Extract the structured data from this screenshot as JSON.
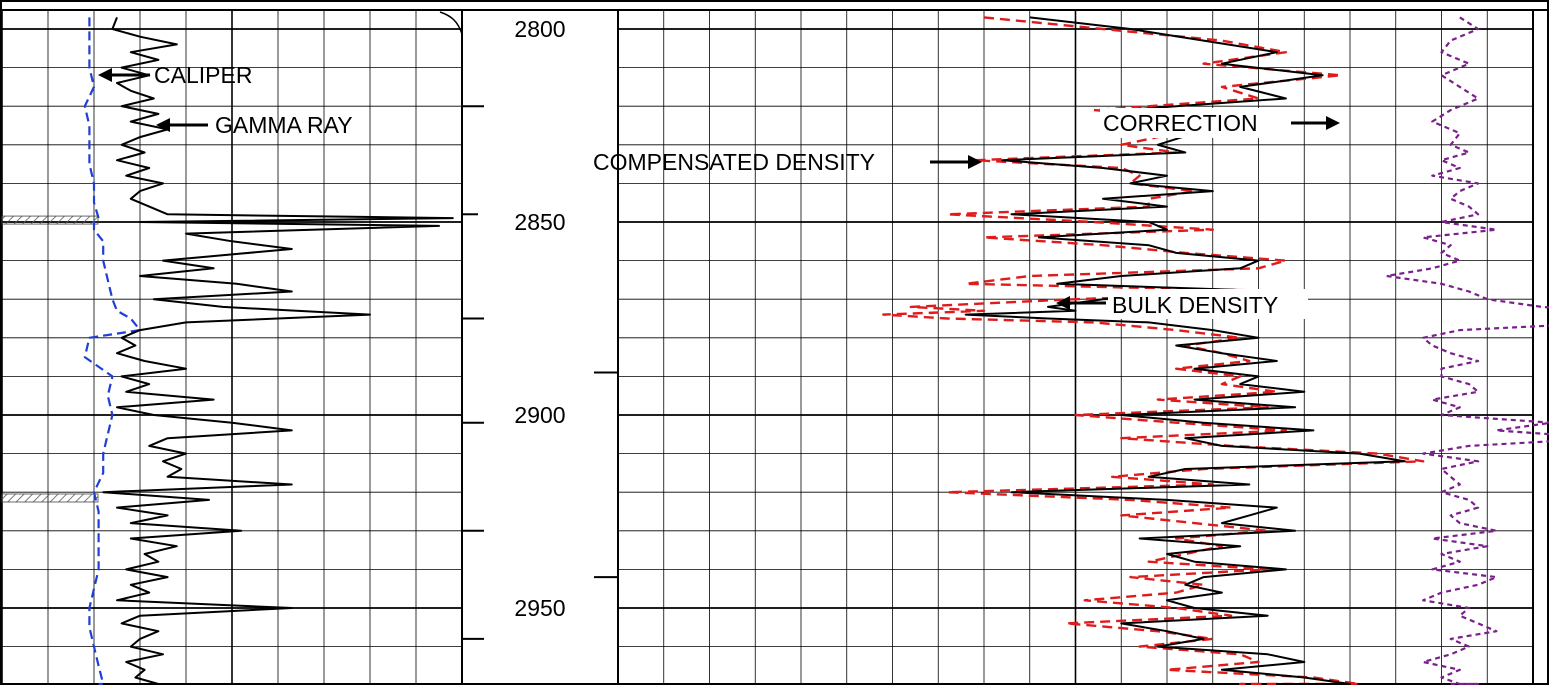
{
  "chart_data": {
    "type": "line",
    "title": "",
    "depth_axis": {
      "ylim": [
        2795,
        2975
      ],
      "tick_labels": [
        "2800",
        "2850",
        "2900",
        "2950"
      ],
      "tick_values": [
        2800,
        2850,
        2900,
        2950
      ]
    },
    "colors": {
      "gamma": "#000000",
      "caliper": "#1f3fd6",
      "bulk": "#000000",
      "compensated": "#e01b1b",
      "correction": "#7a1f8c",
      "grid": "#000000"
    },
    "annotations": [
      {
        "text": "CALIPER",
        "target": "caliper"
      },
      {
        "text": "GAMMA RAY",
        "target": "gamma"
      },
      {
        "text": "COMPENSATED DENSITY",
        "target": "compensated"
      },
      {
        "text": "BULK DENSITY",
        "target": "bulk"
      },
      {
        "text": "CORRECTION",
        "target": "correction"
      }
    ],
    "series": [
      {
        "key": "caliper",
        "track": 1,
        "xlim": [
          0,
          10
        ],
        "depth": [
          2797,
          2800,
          2805,
          2810,
          2815,
          2820,
          2825,
          2830,
          2835,
          2840,
          2845,
          2849,
          2850,
          2852,
          2855,
          2860,
          2865,
          2870,
          2873,
          2875,
          2878,
          2880,
          2885,
          2890,
          2895,
          2900,
          2905,
          2910,
          2915,
          2920,
          2925,
          2930,
          2935,
          2940,
          2945,
          2950,
          2955,
          2960,
          2965,
          2970,
          2974
        ],
        "values": [
          1.9,
          1.9,
          1.9,
          1.9,
          2.0,
          1.8,
          1.9,
          1.9,
          1.9,
          2.0,
          2.0,
          2.1,
          2.0,
          2.0,
          2.2,
          2.2,
          2.3,
          2.4,
          2.5,
          2.8,
          3.0,
          1.9,
          1.8,
          2.4,
          2.3,
          2.4,
          2.3,
          2.2,
          2.2,
          2.0,
          2.1,
          2.1,
          2.1,
          2.1,
          2.0,
          1.9,
          1.9,
          2.0,
          2.1,
          2.2,
          2.1
        ]
      },
      {
        "key": "gamma",
        "track": 1,
        "xlim": [
          0,
          10
        ],
        "depth": [
          2797,
          2800,
          2802,
          2804,
          2806,
          2808,
          2810,
          2812,
          2814,
          2816,
          2818,
          2820,
          2822,
          2824,
          2826,
          2828,
          2830,
          2832,
          2834,
          2836,
          2838,
          2840,
          2842,
          2844,
          2846,
          2848,
          2849,
          2850,
          2851,
          2853,
          2855,
          2857,
          2860,
          2862,
          2864,
          2866,
          2868,
          2870,
          2872,
          2874,
          2876,
          2878,
          2880,
          2882,
          2884,
          2886,
          2888,
          2890,
          2892,
          2894,
          2896,
          2898,
          2900,
          2902,
          2904,
          2906,
          2908,
          2910,
          2912,
          2914,
          2916,
          2918,
          2920,
          2922,
          2924,
          2926,
          2928,
          2930,
          2932,
          2934,
          2936,
          2938,
          2940,
          2942,
          2944,
          2946,
          2948,
          2950,
          2952,
          2954,
          2956,
          2958,
          2960,
          2962,
          2964,
          2966,
          2968,
          2970,
          2972,
          2974
        ],
        "values": [
          2.5,
          2.4,
          3.0,
          3.8,
          2.8,
          3.4,
          2.6,
          3.2,
          2.5,
          2.8,
          3.3,
          2.6,
          3.4,
          2.8,
          3.6,
          3.0,
          2.6,
          3.1,
          2.5,
          3.2,
          2.7,
          3.5,
          3.0,
          2.8,
          3.2,
          3.6,
          9.8,
          3.0,
          9.5,
          4.0,
          5.0,
          6.3,
          3.5,
          4.6,
          3.0,
          5.1,
          6.3,
          3.3,
          4.8,
          8.0,
          4.0,
          3.0,
          2.6,
          2.9,
          2.5,
          3.1,
          4.0,
          2.6,
          3.2,
          2.7,
          4.6,
          2.5,
          3.3,
          5.0,
          6.3,
          3.6,
          3.2,
          4.0,
          3.5,
          3.9,
          3.6,
          6.3,
          2.2,
          4.5,
          2.5,
          3.6,
          2.8,
          5.2,
          2.8,
          3.8,
          3.1,
          3.4,
          2.7,
          3.6,
          2.8,
          3.2,
          2.5,
          6.3,
          3.0,
          2.6,
          3.4,
          3.0,
          2.8,
          3.5,
          2.7,
          3.1,
          2.9,
          3.4,
          3.0,
          3.2
        ]
      },
      {
        "key": "bulk",
        "track": 2,
        "xlim": [
          0,
          10
        ],
        "depth": [
          2797,
          2800,
          2803,
          2806,
          2809,
          2812,
          2815,
          2818,
          2821,
          2824,
          2827,
          2830,
          2832,
          2834,
          2836,
          2838,
          2840,
          2842,
          2844,
          2846,
          2848,
          2850,
          2852,
          2854,
          2856,
          2858,
          2860,
          2862,
          2864,
          2866,
          2868,
          2870,
          2872,
          2873,
          2874,
          2875,
          2876,
          2878,
          2880,
          2882,
          2884,
          2886,
          2888,
          2890,
          2892,
          2894,
          2896,
          2898,
          2900,
          2902,
          2904,
          2906,
          2908,
          2910,
          2912,
          2914,
          2916,
          2918,
          2920,
          2922,
          2924,
          2926,
          2928,
          2930,
          2932,
          2934,
          2936,
          2938,
          2940,
          2942,
          2944,
          2946,
          2948,
          2950,
          2952,
          2954,
          2956,
          2958,
          2960,
          2962,
          2964,
          2966,
          2968,
          2970,
          2972,
          2974
        ],
        "values": [
          4.5,
          5.6,
          6.4,
          7.2,
          6.6,
          7.7,
          6.8,
          7.3,
          5.5,
          7.0,
          6.3,
          5.9,
          6.2,
          4.2,
          5.3,
          6.0,
          5.6,
          6.5,
          5.3,
          6.0,
          4.3,
          5.8,
          6.0,
          4.6,
          5.8,
          6.1,
          7.0,
          6.8,
          5.5,
          4.8,
          7.3,
          5.3,
          4.7,
          5.0,
          3.8,
          4.7,
          5.8,
          6.5,
          7.0,
          6.1,
          6.6,
          7.2,
          6.3,
          7.0,
          6.8,
          7.5,
          6.3,
          7.4,
          5.5,
          6.4,
          7.6,
          6.2,
          6.6,
          8.1,
          8.6,
          6.2,
          5.8,
          6.9,
          4.3,
          6.0,
          7.2,
          6.9,
          6.6,
          7.4,
          5.7,
          6.8,
          6.0,
          6.3,
          7.3,
          6.4,
          6.2,
          6.6,
          6.0,
          6.3,
          7.1,
          5.5,
          6.0,
          6.4,
          5.9,
          7.1,
          7.5,
          6.6,
          7.5,
          8.0,
          7.2,
          7.6
        ]
      },
      {
        "key": "compensated",
        "track": 2,
        "xlim": [
          0,
          10
        ],
        "depth": [
          2797,
          2800,
          2803,
          2806,
          2809,
          2812,
          2815,
          2818,
          2821,
          2824,
          2827,
          2830,
          2832,
          2834,
          2836,
          2838,
          2840,
          2842,
          2844,
          2846,
          2848,
          2850,
          2852,
          2854,
          2856,
          2858,
          2860,
          2862,
          2864,
          2866,
          2868,
          2870,
          2872,
          2873,
          2874,
          2875,
          2876,
          2878,
          2880,
          2882,
          2884,
          2886,
          2888,
          2890,
          2892,
          2894,
          2896,
          2898,
          2900,
          2902,
          2904,
          2906,
          2908,
          2910,
          2912,
          2914,
          2916,
          2918,
          2920,
          2922,
          2924,
          2926,
          2928,
          2930,
          2932,
          2934,
          2936,
          2938,
          2940,
          2942,
          2944,
          2946,
          2948,
          2950,
          2952,
          2954,
          2956,
          2958,
          2960,
          2962,
          2964,
          2966,
          2968,
          2970,
          2972,
          2974
        ],
        "values": [
          4.0,
          5.3,
          6.6,
          7.3,
          6.4,
          7.9,
          6.6,
          7.0,
          5.2,
          6.7,
          6.1,
          5.5,
          6.1,
          3.9,
          5.5,
          5.7,
          5.6,
          6.3,
          5.8,
          5.8,
          3.6,
          5.2,
          6.5,
          4.0,
          5.3,
          6.2,
          7.3,
          7.0,
          4.5,
          3.8,
          7.5,
          5.0,
          3.2,
          4.0,
          2.9,
          3.6,
          5.2,
          6.1,
          6.8,
          6.2,
          6.6,
          6.9,
          6.1,
          6.8,
          6.6,
          7.2,
          5.9,
          7.1,
          5.0,
          6.1,
          7.3,
          5.5,
          6.7,
          8.3,
          8.8,
          6.4,
          5.4,
          6.5,
          3.6,
          5.6,
          6.7,
          5.5,
          6.3,
          7.1,
          6.1,
          6.6,
          6.2,
          5.8,
          7.1,
          5.6,
          6.4,
          6.1,
          5.1,
          6.1,
          6.7,
          4.9,
          5.9,
          6.5,
          5.7,
          6.8,
          7.0,
          6.0,
          7.6,
          8.1,
          6.8,
          7.5
        ]
      },
      {
        "key": "correction",
        "track": 2,
        "xlim": [
          0,
          10
        ],
        "depth": [
          2797,
          2800,
          2803,
          2806,
          2809,
          2812,
          2815,
          2818,
          2821,
          2824,
          2827,
          2830,
          2832,
          2834,
          2836,
          2838,
          2840,
          2842,
          2844,
          2846,
          2848,
          2850,
          2852,
          2854,
          2856,
          2858,
          2860,
          2862,
          2864,
          2866,
          2868,
          2870,
          2872,
          2873,
          2874,
          2875,
          2876,
          2878,
          2880,
          2882,
          2884,
          2886,
          2888,
          2890,
          2892,
          2894,
          2896,
          2898,
          2900,
          2902,
          2904,
          2906,
          2908,
          2910,
          2912,
          2914,
          2916,
          2918,
          2920,
          2922,
          2924,
          2926,
          2928,
          2930,
          2932,
          2934,
          2936,
          2938,
          2940,
          2942,
          2944,
          2946,
          2948,
          2950,
          2952,
          2954,
          2956,
          2958,
          2960,
          2962,
          2964,
          2966,
          2968,
          2970,
          2972,
          2974
        ],
        "values": [
          9.2,
          9.4,
          9.1,
          9.0,
          9.3,
          9.0,
          9.2,
          9.4,
          9.1,
          8.9,
          9.2,
          9.1,
          9.3,
          9.0,
          9.2,
          8.9,
          9.4,
          9.2,
          9.1,
          9.3,
          9.4,
          9.0,
          9.6,
          8.8,
          9.1,
          9.0,
          9.2,
          8.9,
          8.4,
          9.0,
          9.3,
          9.5,
          10.1,
          10.7,
          10.6,
          10.3,
          10.9,
          9.2,
          8.8,
          8.9,
          9.1,
          9.4,
          9.0,
          9.0,
          9.3,
          9.4,
          8.9,
          9.2,
          9.0,
          10.2,
          9.6,
          10.8,
          9.3,
          8.8,
          9.4,
          9.0,
          9.1,
          9.2,
          9.0,
          9.3,
          9.4,
          9.1,
          9.2,
          9.6,
          8.9,
          9.5,
          9.0,
          9.2,
          8.9,
          9.6,
          9.4,
          9.0,
          8.8,
          9.3,
          9.2,
          9.4,
          9.6,
          9.1,
          9.3,
          9.1,
          8.8,
          9.2,
          9.0,
          9.2,
          9.4,
          9.1
        ]
      }
    ]
  }
}
